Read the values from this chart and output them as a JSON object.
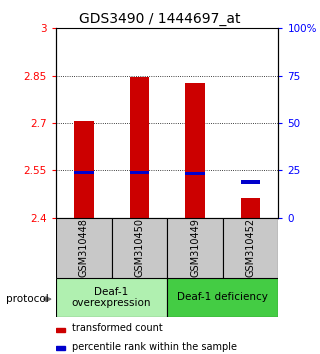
{
  "title": "GDS3490 / 1444697_at",
  "samples": [
    "GSM310448",
    "GSM310450",
    "GSM310449",
    "GSM310452"
  ],
  "red_values": [
    2.705,
    2.845,
    2.828,
    2.462
  ],
  "blue_percentiles": [
    23.0,
    23.0,
    22.5,
    18.0
  ],
  "ylim_left": [
    2.4,
    3.0
  ],
  "ylim_right": [
    0,
    100
  ],
  "yticks_left": [
    2.4,
    2.55,
    2.7,
    2.85,
    3.0
  ],
  "yticks_right": [
    0,
    25,
    50,
    75,
    100
  ],
  "ytick_labels_left": [
    "2.4",
    "2.55",
    "2.7",
    "2.85",
    "3"
  ],
  "ytick_labels_right": [
    "0",
    "25",
    "50",
    "75",
    "100%"
  ],
  "hlines": [
    2.55,
    2.7,
    2.85
  ],
  "bar_color": "#cc0000",
  "blue_color": "#0000cc",
  "baseline": 2.4,
  "protocol_label": "protocol",
  "legend_red": "transformed count",
  "legend_blue": "percentile rank within the sample",
  "title_fontsize": 10,
  "tick_fontsize": 7.5,
  "sample_label_fontsize": 7,
  "group_bg_color": "#c8c8c8",
  "group_label_fontsize": 7.5,
  "group_colors": [
    "#b0f0b0",
    "#44cc44"
  ],
  "group_labels": [
    "Deaf-1\noverexpression",
    "Deaf-1 deficiency"
  ],
  "group_ranges": [
    [
      0,
      2
    ],
    [
      2,
      4
    ]
  ]
}
